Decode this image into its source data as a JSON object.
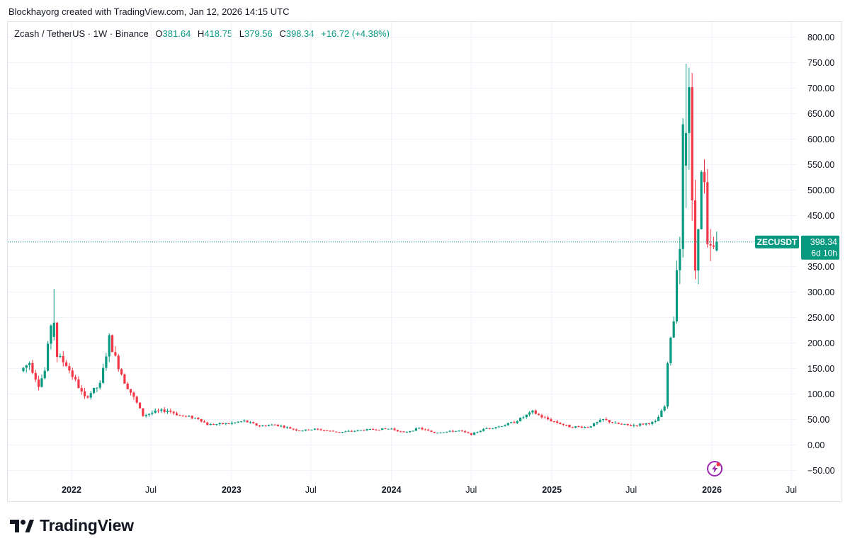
{
  "header": {
    "credit": "Blockhayorg created with TradingView.com, Jan 12, 2026 14:15 UTC"
  },
  "legend": {
    "symbol": "Zcash / TetherUS · 1W · Binance",
    "o_label": "O",
    "o_value": "381.64",
    "h_label": "H",
    "h_value": "418.75",
    "l_label": "L",
    "l_value": "379.56",
    "c_label": "C",
    "c_value": "398.34",
    "change": "+16.72 (+4.38%)"
  },
  "price_tag": {
    "ticker": "ZECUSDT",
    "price": "398.34",
    "countdown": "6d 10h"
  },
  "footer": {
    "brand": "TradingView"
  },
  "colors": {
    "up": "#089981",
    "down": "#f23645",
    "grid": "#f0f3fa",
    "accent": "#9c27b0"
  },
  "icons": {
    "logo": "tradingview-logo-icon",
    "event": "lightning-event-icon"
  },
  "chart_data": {
    "type": "candlestick",
    "interval": "1W",
    "ylim": [
      -70,
      820
    ],
    "y_ticks": [
      -50,
      0,
      50,
      100,
      150,
      200,
      250,
      300,
      350,
      400,
      450,
      500,
      550,
      600,
      650,
      700,
      750,
      800
    ],
    "y_tick_labels": [
      "−50.00",
      "0.00",
      "50.00",
      "100.00",
      "150.00",
      "200.00",
      "250.00",
      "300.00",
      "350.00",
      "400.00",
      "450.00",
      "500.00",
      "550.00",
      "600.00",
      "650.00",
      "700.00",
      "750.00",
      "800.00"
    ],
    "x_ticks": [
      {
        "label": "2022",
        "date": "2022-01-01",
        "bold": true
      },
      {
        "label": "Jul",
        "date": "2022-07-01",
        "bold": false
      },
      {
        "label": "2023",
        "date": "2023-01-01",
        "bold": true
      },
      {
        "label": "Jul",
        "date": "2023-07-01",
        "bold": false
      },
      {
        "label": "2024",
        "date": "2024-01-01",
        "bold": true
      },
      {
        "label": "Jul",
        "date": "2024-07-01",
        "bold": false
      },
      {
        "label": "2025",
        "date": "2025-01-01",
        "bold": true
      },
      {
        "label": "Jul",
        "date": "2025-07-01",
        "bold": false
      },
      {
        "label": "2026",
        "date": "2026-01-01",
        "bold": true
      },
      {
        "label": "Jul",
        "date": "2026-07-01",
        "bold": false
      }
    ],
    "last_price": 398.34,
    "anchors": [
      {
        "date": "2021-09-13",
        "price": 145
      },
      {
        "date": "2021-10-04",
        "price": 162
      },
      {
        "date": "2021-10-25",
        "price": 118
      },
      {
        "date": "2021-11-08",
        "price": 145
      },
      {
        "date": "2021-11-22",
        "price": 238
      },
      {
        "date": "2021-12-06",
        "price": 175
      },
      {
        "date": "2021-12-27",
        "price": 158
      },
      {
        "date": "2022-01-17",
        "price": 125
      },
      {
        "date": "2022-02-07",
        "price": 92
      },
      {
        "date": "2022-02-28",
        "price": 108
      },
      {
        "date": "2022-03-14",
        "price": 118
      },
      {
        "date": "2022-04-04",
        "price": 208
      },
      {
        "date": "2022-04-18",
        "price": 170
      },
      {
        "date": "2022-05-09",
        "price": 125
      },
      {
        "date": "2022-06-06",
        "price": 82
      },
      {
        "date": "2022-06-20",
        "price": 58
      },
      {
        "date": "2022-07-18",
        "price": 65
      },
      {
        "date": "2022-08-15",
        "price": 68
      },
      {
        "date": "2022-09-12",
        "price": 58
      },
      {
        "date": "2022-10-24",
        "price": 52
      },
      {
        "date": "2022-11-14",
        "price": 40
      },
      {
        "date": "2023-01-02",
        "price": 42
      },
      {
        "date": "2023-02-06",
        "price": 47
      },
      {
        "date": "2023-03-13",
        "price": 37
      },
      {
        "date": "2023-04-17",
        "price": 40
      },
      {
        "date": "2023-06-12",
        "price": 28
      },
      {
        "date": "2023-07-17",
        "price": 31
      },
      {
        "date": "2023-09-11",
        "price": 25
      },
      {
        "date": "2023-11-13",
        "price": 30
      },
      {
        "date": "2024-01-08",
        "price": 32
      },
      {
        "date": "2024-02-05",
        "price": 24
      },
      {
        "date": "2024-03-11",
        "price": 33
      },
      {
        "date": "2024-04-15",
        "price": 24
      },
      {
        "date": "2024-06-10",
        "price": 28
      },
      {
        "date": "2024-07-08",
        "price": 21
      },
      {
        "date": "2024-08-12",
        "price": 33
      },
      {
        "date": "2024-09-09",
        "price": 36
      },
      {
        "date": "2024-10-14",
        "price": 45
      },
      {
        "date": "2024-11-25",
        "price": 65
      },
      {
        "date": "2024-12-16",
        "price": 55
      },
      {
        "date": "2025-01-06",
        "price": 48
      },
      {
        "date": "2025-02-17",
        "price": 36
      },
      {
        "date": "2025-03-31",
        "price": 35
      },
      {
        "date": "2025-05-05",
        "price": 50
      },
      {
        "date": "2025-06-02",
        "price": 42
      },
      {
        "date": "2025-07-07",
        "price": 38
      },
      {
        "date": "2025-08-11",
        "price": 42
      },
      {
        "date": "2025-09-01",
        "price": 45
      },
      {
        "date": "2025-09-22",
        "price": 75
      },
      {
        "date": "2025-09-29",
        "price": 155
      },
      {
        "date": "2025-10-06",
        "price": 215
      },
      {
        "date": "2025-10-13",
        "price": 245
      },
      {
        "date": "2025-10-20",
        "price": 360
      },
      {
        "date": "2025-10-27",
        "price": 390
      },
      {
        "date": "2025-11-03",
        "price": 610
      },
      {
        "date": "2025-11-10",
        "price": 680
      },
      {
        "date": "2025-11-17",
        "price": 560
      },
      {
        "date": "2025-11-24",
        "price": 430
      },
      {
        "date": "2025-12-01",
        "price": 345
      },
      {
        "date": "2025-12-08",
        "price": 445
      },
      {
        "date": "2025-12-15",
        "price": 525
      },
      {
        "date": "2025-12-22",
        "price": 505
      },
      {
        "date": "2025-12-29",
        "price": 382
      },
      {
        "date": "2026-01-05",
        "price": 382
      }
    ],
    "notable_candles": [
      {
        "date": "2021-11-22",
        "open": 212,
        "high": 306,
        "low": 205,
        "close": 240
      },
      {
        "date": "2025-11-03",
        "open": 548,
        "high": 748,
        "low": 465,
        "close": 612
      },
      {
        "date": "2025-11-10",
        "open": 612,
        "high": 740,
        "low": 540,
        "close": 702
      },
      {
        "date": "2025-11-17",
        "open": 702,
        "high": 730,
        "low": 440,
        "close": 480
      },
      {
        "date": "2026-01-12",
        "open": 381.64,
        "high": 418.75,
        "low": 379.56,
        "close": 398.34
      }
    ]
  }
}
